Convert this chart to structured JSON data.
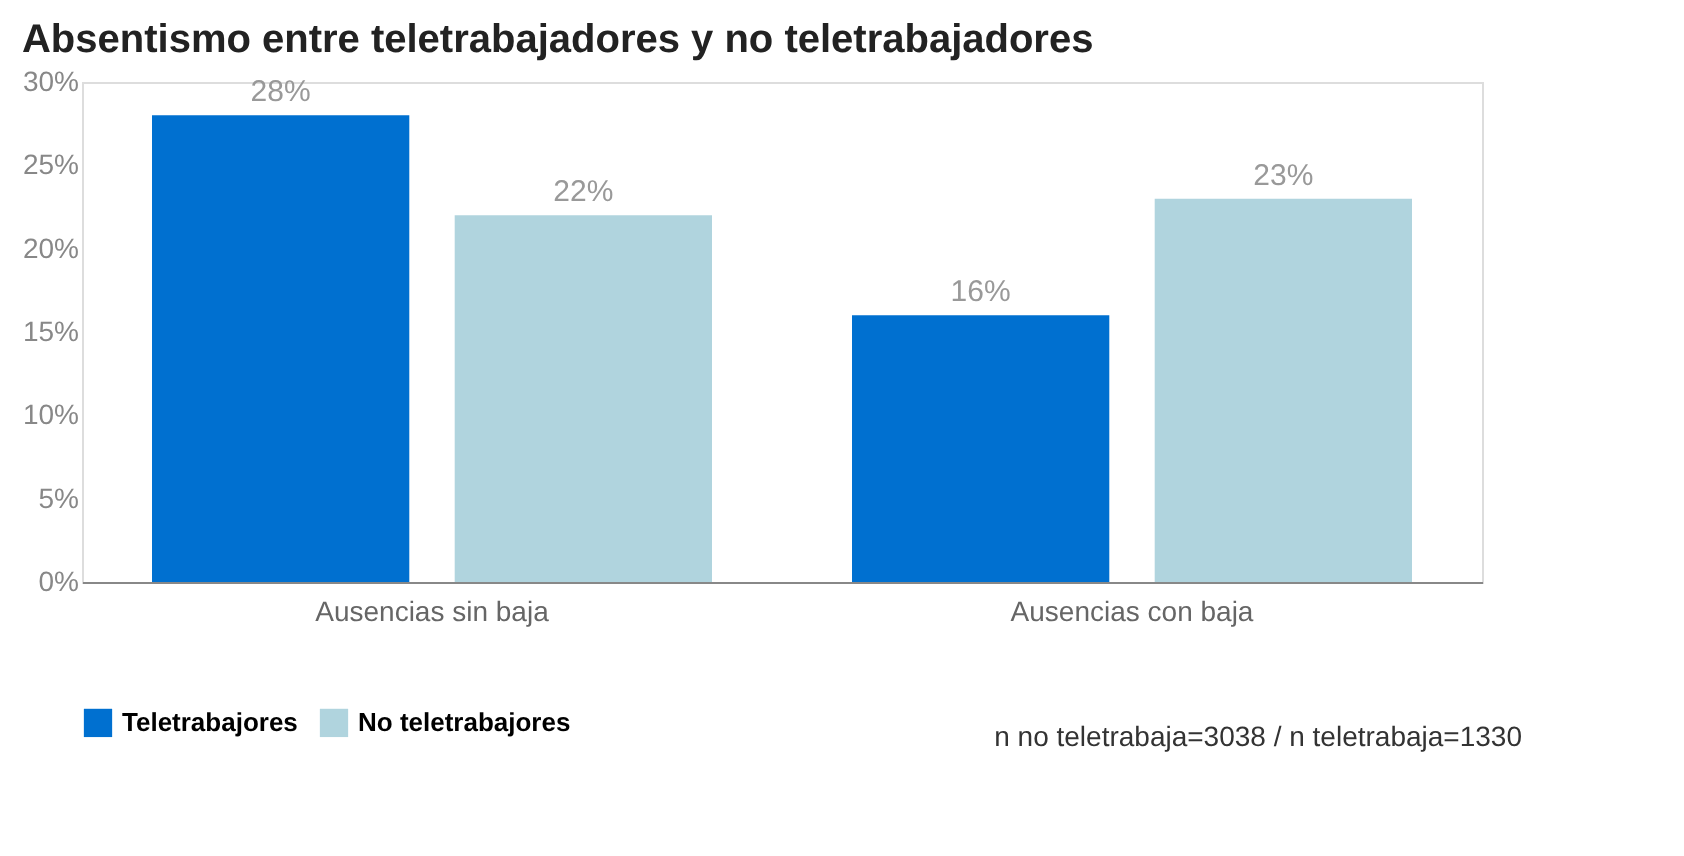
{
  "chart_data": {
    "type": "bar",
    "title": "Absentismo entre teletrabajadores y no teletrabajadores",
    "categories": [
      "Ausencias sin baja",
      "Ausencias con baja"
    ],
    "series": [
      {
        "name": "Teletrabajores",
        "color": "#0070d0",
        "values": [
          28,
          16
        ],
        "value_labels": [
          "28%",
          "16%"
        ]
      },
      {
        "name": "No teletrabajores",
        "color": "#b0d4de",
        "values": [
          22,
          23
        ],
        "value_labels": [
          "22%",
          "23%"
        ]
      }
    ],
    "ylim": [
      0,
      30
    ],
    "yticks": [
      {
        "value": 0,
        "label": "0%"
      },
      {
        "value": 5,
        "label": "5%"
      },
      {
        "value": 10,
        "label": "10%"
      },
      {
        "value": 15,
        "label": "15%"
      },
      {
        "value": 20,
        "label": "20%"
      },
      {
        "value": 25,
        "label": "25%"
      },
      {
        "value": 30,
        "label": "30%"
      }
    ],
    "grid": false,
    "legend": "bottom",
    "annotations": [
      "n no teletrabaja=3038 / n teletrabaja=1330"
    ]
  }
}
